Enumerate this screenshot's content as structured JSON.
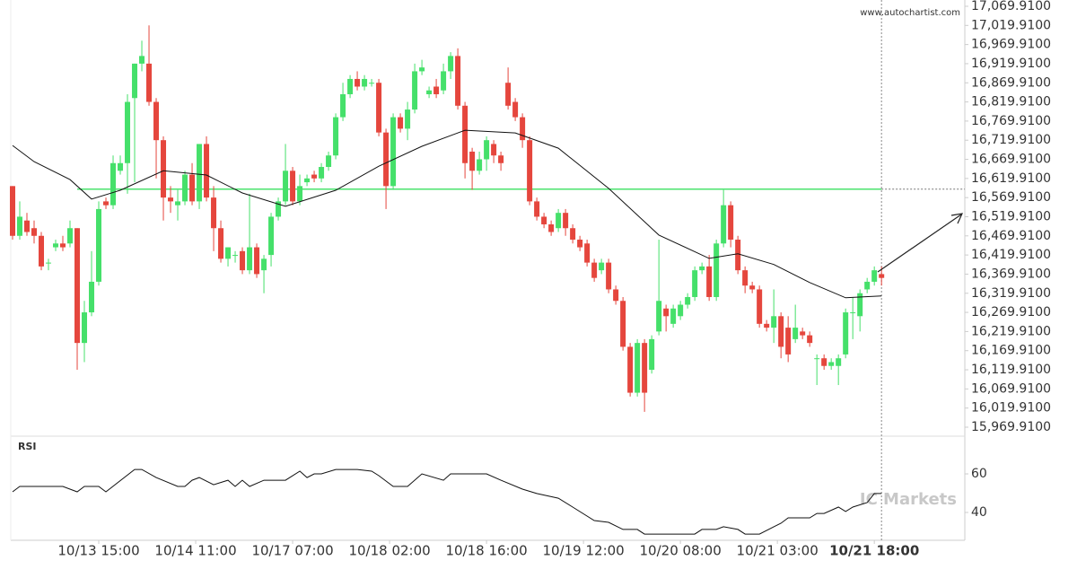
{
  "chart_data": {
    "type": "candlestick",
    "watermark": "www.autochartist.com",
    "brand": "IC Markets",
    "up_color": "#45e06a",
    "down_color": "#e5463d",
    "xlim": [
      -0.25,
      132.6
    ],
    "xticks": [
      {
        "value": 12,
        "label": "10/13 15:00"
      },
      {
        "value": 25.5,
        "label": "10/14 11:00"
      },
      {
        "value": 39,
        "label": "10/17 07:00"
      },
      {
        "value": 52.5,
        "label": "10/18 02:00"
      },
      {
        "value": 66,
        "label": "10/18 16:00"
      },
      {
        "value": 79.5,
        "label": "10/19 12:00"
      },
      {
        "value": 93,
        "label": "10/20 08:00"
      },
      {
        "value": 106.5,
        "label": "10/21 03:00"
      },
      {
        "value": 120,
        "label": "10/21 18:00"
      }
    ],
    "ylim": [
      15955.8,
      17086.3
    ],
    "yticks": [
      {
        "value": 17069.91,
        "label": "17,069.9100"
      },
      {
        "value": 17019.91,
        "label": "17,019.9100"
      },
      {
        "value": 16969.91,
        "label": "16,969.9100"
      },
      {
        "value": 16919.91,
        "label": "16,919.9100"
      },
      {
        "value": 16869.91,
        "label": "16,869.9100"
      },
      {
        "value": 16819.91,
        "label": "16,819.9100"
      },
      {
        "value": 16769.91,
        "label": "16,769.9100"
      },
      {
        "value": 16719.91,
        "label": "16,719.9100"
      },
      {
        "value": 16669.91,
        "label": "16,669.9100"
      },
      {
        "value": 16619.91,
        "label": "16,619.9100"
      },
      {
        "value": 16569.91,
        "label": "16,569.9100"
      },
      {
        "value": 16519.91,
        "label": "16,519.9100"
      },
      {
        "value": 16469.91,
        "label": "16,469.9100"
      },
      {
        "value": 16419.91,
        "label": "16,419.9100"
      },
      {
        "value": 16369.91,
        "label": "16,369.9100"
      },
      {
        "value": 16319.91,
        "label": "16,319.9100"
      },
      {
        "value": 16269.91,
        "label": "16,269.9100"
      },
      {
        "value": 16219.91,
        "label": "16,219.9100"
      },
      {
        "value": 16169.91,
        "label": "16,169.9100"
      },
      {
        "value": 16119.91,
        "label": "16,119.9100"
      },
      {
        "value": 16069.91,
        "label": "16,069.9100"
      },
      {
        "value": 16019.91,
        "label": "16,019.9100"
      },
      {
        "value": 15969.91,
        "label": "15,969.9100"
      }
    ],
    "open": [
      16600,
      16470,
      16510,
      16490,
      16470,
      16400,
      16440,
      16450,
      16450,
      16490,
      16190,
      16270,
      16350,
      16560,
      16550,
      16640,
      16660,
      16830,
      16920,
      16920,
      16820,
      16720,
      16570,
      16550,
      16560,
      16630,
      16560,
      16710,
      16570,
      16490,
      16410,
      16420,
      16430,
      16380,
      16440,
      16380,
      16420,
      16520,
      16560,
      16640,
      16560,
      16610,
      16630,
      16620,
      16650,
      16680,
      16780,
      16840,
      16880,
      16860,
      16870,
      16870,
      16740,
      16600,
      16780,
      16750,
      16800,
      16900,
      16840,
      16860,
      16850,
      16900,
      16940,
      16810,
      16690,
      16640,
      16670,
      16710,
      16680,
      16870,
      16820,
      16780,
      16720,
      16560,
      16520,
      16500,
      16490,
      16530,
      16490,
      16460,
      16450,
      16400,
      16380,
      16400,
      16330,
      16300,
      16180,
      16060,
      16190,
      16120,
      16220,
      16280,
      16240,
      16260,
      16290,
      16310,
      16380,
      16390,
      16310,
      16450,
      16550,
      16460,
      16380,
      16340,
      16330,
      16240,
      16230,
      16260,
      16230,
      16200,
      16220,
      16210,
      16150,
      16150,
      16130,
      16130,
      16160,
      16270,
      16260,
      16330,
      16350,
      16370
    ],
    "high": [
      16600,
      16560,
      16530,
      16510,
      16480,
      16410,
      16460,
      16470,
      16510,
      16490,
      16300,
      16430,
      16560,
      16570,
      16680,
      16680,
      16840,
      16920,
      16980,
      17020,
      16830,
      16730,
      16600,
      16590,
      16640,
      16660,
      16710,
      16730,
      16600,
      16510,
      16440,
      16430,
      16440,
      16580,
      16450,
      16420,
      16530,
      16570,
      16710,
      16650,
      16630,
      16630,
      16640,
      16660,
      16690,
      16790,
      16870,
      16890,
      16900,
      16890,
      16880,
      16880,
      16750,
      16790,
      16790,
      16820,
      16920,
      16930,
      16860,
      16880,
      16920,
      16950,
      16960,
      16820,
      16700,
      16690,
      16730,
      16720,
      16690,
      16910,
      16830,
      16790,
      16730,
      16570,
      16530,
      16510,
      16540,
      16540,
      16500,
      16470,
      16460,
      16410,
      16410,
      16410,
      16340,
      16310,
      16190,
      16200,
      16200,
      16210,
      16460,
      16290,
      16290,
      16300,
      16320,
      16390,
      16400,
      16420,
      16460,
      16590,
      16560,
      16470,
      16390,
      16350,
      16340,
      16250,
      16330,
      16270,
      16260,
      16290,
      16230,
      16220,
      16160,
      16160,
      16150,
      16160,
      16280,
      16310,
      16330,
      16360,
      16390,
      16390
    ],
    "low": [
      16460,
      16460,
      16470,
      16450,
      16380,
      16380,
      16430,
      16430,
      16440,
      16120,
      16140,
      16260,
      16340,
      16540,
      16540,
      16630,
      16580,
      16610,
      16900,
      16810,
      16620,
      16510,
      16530,
      16510,
      16550,
      16550,
      16540,
      16560,
      16430,
      16400,
      16390,
      16400,
      16370,
      16370,
      16360,
      16320,
      16390,
      16510,
      16550,
      16550,
      16550,
      16600,
      16610,
      16610,
      16640,
      16670,
      16770,
      16830,
      16850,
      16850,
      16860,
      16730,
      16540,
      16590,
      16740,
      16720,
      16790,
      16890,
      16830,
      16830,
      16840,
      16880,
      16800,
      16620,
      16590,
      16630,
      16640,
      16660,
      16640,
      16800,
      16770,
      16700,
      16550,
      16510,
      16490,
      16470,
      16480,
      16470,
      16450,
      16430,
      16390,
      16350,
      16370,
      16320,
      16290,
      16170,
      16050,
      16050,
      16010,
      16110,
      16210,
      16220,
      16230,
      16250,
      16280,
      16300,
      16370,
      16300,
      16300,
      16440,
      16440,
      16370,
      16320,
      16320,
      16230,
      16220,
      16190,
      16150,
      16140,
      16190,
      16200,
      16180,
      16080,
      16120,
      16120,
      16080,
      16150,
      16200,
      16220,
      16320,
      16340,
      16340
    ],
    "close": [
      16470,
      16520,
      16480,
      16470,
      16390,
      16400,
      16450,
      16440,
      16490,
      16190,
      16270,
      16350,
      16540,
      16550,
      16660,
      16660,
      16820,
      16920,
      16940,
      16820,
      16720,
      16570,
      16560,
      16560,
      16630,
      16560,
      16710,
      16570,
      16490,
      16410,
      16440,
      16420,
      16380,
      16440,
      16370,
      16410,
      16520,
      16560,
      16640,
      16560,
      16600,
      16620,
      16620,
      16650,
      16680,
      16780,
      16840,
      16880,
      16860,
      16880,
      16870,
      16740,
      16600,
      16780,
      16750,
      16800,
      16900,
      16910,
      16850,
      16840,
      16900,
      16940,
      16810,
      16660,
      16640,
      16670,
      16720,
      16680,
      16660,
      16810,
      16780,
      16720,
      16560,
      16520,
      16500,
      16480,
      16530,
      16490,
      16460,
      16440,
      16400,
      16360,
      16400,
      16330,
      16300,
      16180,
      16060,
      16190,
      16060,
      16200,
      16300,
      16260,
      16280,
      16290,
      16310,
      16380,
      16390,
      16310,
      16450,
      16550,
      16460,
      16380,
      16340,
      16330,
      16240,
      16230,
      16260,
      16180,
      16160,
      16230,
      16210,
      16190,
      16150,
      16130,
      16140,
      16150,
      16270,
      16270,
      16320,
      16350,
      16380,
      16360
    ],
    "ma": {
      "color": "#111111",
      "x": [
        0,
        3,
        8,
        11,
        15,
        21,
        27,
        32,
        38,
        45,
        51,
        57,
        63,
        70,
        76,
        83,
        90,
        97,
        101,
        106,
        111,
        116,
        121
      ],
      "values": [
        16706,
        16664,
        16617,
        16566,
        16589,
        16640,
        16629,
        16582,
        16547,
        16589,
        16652,
        16704,
        16746,
        16739,
        16699,
        16594,
        16472,
        16411,
        16423,
        16395,
        16348,
        16308,
        16313
      ]
    },
    "level": {
      "value": 16592,
      "color": "#4be36e"
    },
    "rsi": {
      "title": "RSI",
      "color": "#111111",
      "ylim": [
        26.5,
        77.7
      ],
      "yticks": [
        60,
        40
      ],
      "x": [
        0,
        1,
        7,
        9,
        10,
        12,
        13,
        17,
        18,
        20,
        23,
        24,
        25,
        26,
        28,
        30,
        31,
        32,
        33,
        35,
        38,
        40,
        41,
        42,
        43,
        45,
        48,
        50,
        51,
        53,
        55,
        57,
        60,
        61,
        66,
        68,
        71,
        73,
        76,
        78,
        81,
        83,
        85,
        87,
        88,
        95,
        96,
        98,
        99,
        101,
        102,
        104,
        106,
        107,
        108,
        111,
        112,
        113,
        115,
        116,
        117,
        119,
        120,
        121
      ],
      "values": [
        50.7,
        53.5,
        53.5,
        50.7,
        53.5,
        53.5,
        50.7,
        62.3,
        62.3,
        58.1,
        53.5,
        53.5,
        56.7,
        58.1,
        54.4,
        56.7,
        53.5,
        56.7,
        53.5,
        56.7,
        56.7,
        61.4,
        58.1,
        60,
        60,
        62.3,
        62.3,
        61.4,
        59.1,
        53.5,
        53.5,
        60,
        56.7,
        60,
        60,
        56.7,
        52.1,
        49.8,
        47.4,
        42.8,
        35.8,
        34.9,
        31.2,
        31.2,
        28.8,
        28.8,
        31.2,
        31.2,
        32.6,
        31.2,
        28.8,
        28.8,
        32.6,
        34.4,
        37.2,
        37.2,
        39.5,
        39.5,
        42.8,
        40.5,
        42.8,
        45.1,
        49.8,
        49.8
      ]
    }
  }
}
